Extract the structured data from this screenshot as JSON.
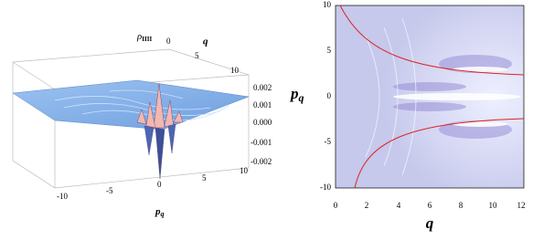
{
  "left_panel": {
    "title": {
      "symbol": "ρ",
      "subscript": "IIII"
    },
    "q_axis": {
      "label": "q",
      "ticks": [
        "0",
        "5",
        "10"
      ]
    },
    "z_axis": {
      "ticks": [
        "0.002",
        "0.001",
        "0.000",
        "-0.001",
        "-0.002"
      ]
    },
    "p_axis": {
      "label": {
        "symbol": "p",
        "subscript": "q"
      },
      "ticks": [
        "-10",
        "-5",
        "0",
        "5",
        "10"
      ]
    }
  },
  "right_panel": {
    "y_axis": {
      "label": {
        "symbol": "p",
        "subscript": "q"
      },
      "ticks": [
        "10",
        "5",
        "0",
        "-5",
        "-10"
      ]
    },
    "x_axis": {
      "label": "q",
      "ticks": [
        "0",
        "2",
        "4",
        "6",
        "8",
        "10",
        "12"
      ]
    }
  }
}
